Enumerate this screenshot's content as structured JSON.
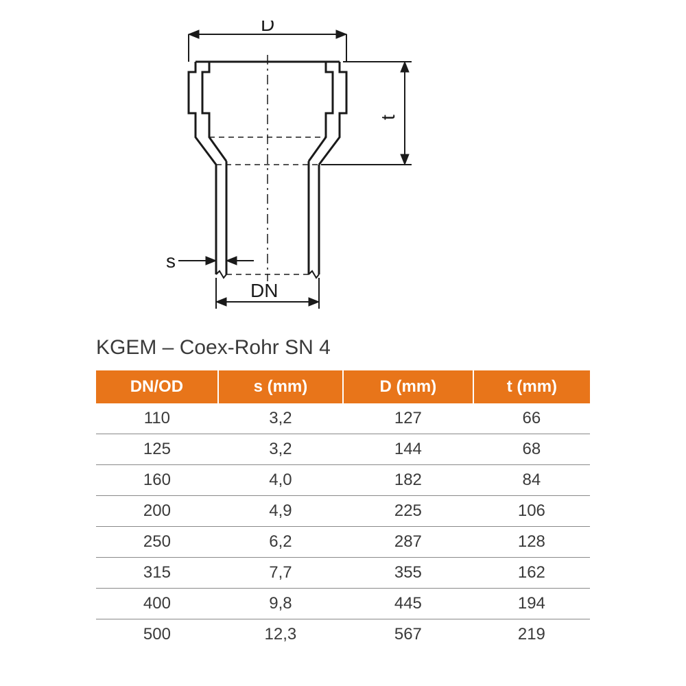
{
  "diagram": {
    "labels": {
      "D": "D",
      "t": "t",
      "s": "s",
      "DN": "DN"
    },
    "stroke_color": "#1a1a1a",
    "stroke_width_main": 3,
    "stroke_width_dim": 2,
    "dash_pattern": "8,6"
  },
  "table": {
    "title": "KGEM – Coex-Rohr SN 4",
    "header_bg": "#e8751a",
    "header_fg": "#ffffff",
    "cell_fg": "#3a3a3a",
    "row_border": "#888888",
    "columns": [
      "DN/OD",
      "s (mm)",
      "D (mm)",
      "t (mm)"
    ],
    "rows": [
      [
        "110",
        "3,2",
        "127",
        "66"
      ],
      [
        "125",
        "3,2",
        "144",
        "68"
      ],
      [
        "160",
        "4,0",
        "182",
        "84"
      ],
      [
        "200",
        "4,9",
        "225",
        "106"
      ],
      [
        "250",
        "6,2",
        "287",
        "128"
      ],
      [
        "315",
        "7,7",
        "355",
        "162"
      ],
      [
        "400",
        "9,8",
        "445",
        "194"
      ],
      [
        "500",
        "12,3",
        "567",
        "219"
      ]
    ]
  }
}
